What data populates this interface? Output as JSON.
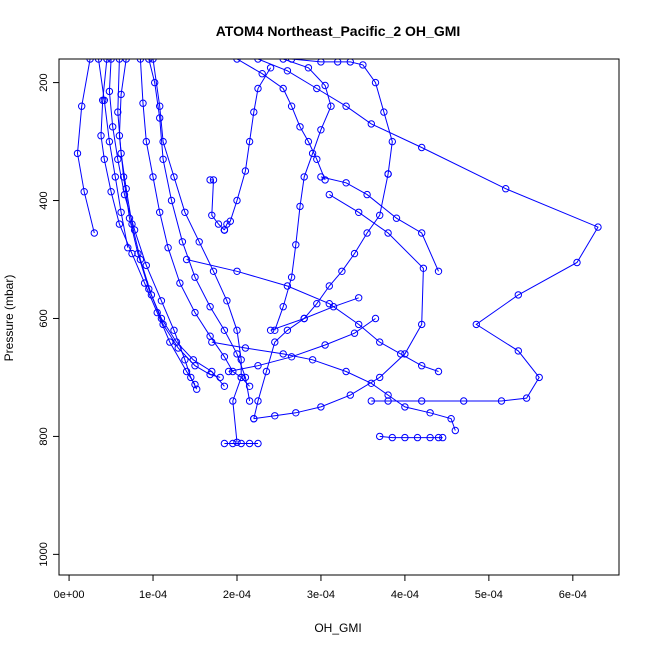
{
  "chart_data": {
    "type": "line",
    "title": "ATOM4 Northeast_Pacific_2 OH_GMI",
    "xlabel": "OH_GMI",
    "ylabel": "Pressure (mbar)",
    "xlim": [
      -1.2e-05,
      0.000655
    ],
    "ylim": [
      1035,
      160
    ],
    "y_reversed": true,
    "x_ticks": [
      0,
      0.0001,
      0.0002,
      0.0003,
      0.0004,
      0.0005,
      0.0006
    ],
    "x_tick_labels": [
      "0e+00",
      "1e-04",
      "2e-04",
      "3e-04",
      "4e-04",
      "5e-04",
      "6e-04"
    ],
    "y_ticks": [
      200,
      400,
      600,
      800,
      1000
    ],
    "y_tick_labels": [
      "200",
      "400",
      "600",
      "800",
      "1000"
    ],
    "grid": false,
    "color": "#0000ff",
    "series": [
      {
        "x": [
          2.5e-05,
          1.5e-05,
          1e-05,
          1.8e-05,
          3e-05
        ],
        "y": [
          160,
          240,
          320,
          385,
          455
        ]
      },
      {
        "x": [
          3.5e-05,
          4.2e-05,
          4.8e-05,
          5.5e-05,
          6.2e-05,
          7e-05
        ],
        "y": [
          160,
          230,
          300,
          360,
          420,
          480
        ]
      },
      {
        "x": [
          4.5e-05,
          4e-05,
          3.8e-05,
          4.2e-05,
          5e-05,
          6e-05,
          7.5e-05,
          9e-05,
          0.000105,
          0.00012,
          0.00014,
          0.00015
        ],
        "y": [
          160,
          230,
          290,
          330,
          385,
          440,
          490,
          540,
          590,
          640,
          690,
          712
        ]
      },
      {
        "x": [
          5e-05,
          4.8e-05,
          5.2e-05,
          5.8e-05,
          6.6e-05,
          7.8e-05,
          9.2e-05,
          0.00011,
          0.000125,
          0.000138,
          0.000145,
          0.000152
        ],
        "y": [
          160,
          215,
          275,
          330,
          390,
          450,
          510,
          570,
          620,
          670,
          700,
          720
        ]
      },
      {
        "x": [
          6e-05,
          5.8e-05,
          6.2e-05,
          6.8e-05,
          7.5e-05,
          8.5e-05,
          9.8e-05,
          0.000112,
          0.00013,
          0.00015,
          0.000168,
          0.00018
        ],
        "y": [
          160,
          250,
          320,
          380,
          440,
          500,
          560,
          610,
          650,
          680,
          695,
          700
        ]
      },
      {
        "x": [
          6.8e-05,
          6.2e-05,
          6e-05,
          6.5e-05,
          7.2e-05,
          8.2e-05,
          9.5e-05,
          0.00011,
          0.000128,
          0.000148,
          0.00017,
          0.000185
        ],
        "y": [
          160,
          220,
          290,
          360,
          430,
          490,
          550,
          600,
          640,
          670,
          690,
          715
        ]
      },
      {
        "x": [
          8.5e-05,
          8.8e-05,
          9.2e-05,
          0.0001,
          0.000108,
          0.000118,
          0.000132,
          0.00015,
          0.000168,
          0.000185,
          0.000195,
          0.000205,
          0.000215
        ],
        "y": [
          160,
          235,
          300,
          360,
          420,
          480,
          540,
          590,
          630,
          665,
          690,
          700,
          715
        ]
      },
      {
        "x": [
          9.5e-05,
          0.000102,
          0.000108,
          0.000112,
          0.000122,
          0.000135,
          0.00015,
          0.000168,
          0.000185,
          0.0002,
          0.00021,
          0.000215
        ],
        "y": [
          160,
          200,
          260,
          330,
          400,
          470,
          530,
          580,
          620,
          660,
          700,
          740
        ]
      },
      {
        "x": [
          0.0001,
          0.000108,
          0.000112,
          0.000125,
          0.000138,
          0.000155,
          0.000172,
          0.000188,
          0.0002,
          0.000205,
          0.000205,
          0.000195,
          0.0002
        ],
        "y": [
          160,
          240,
          300,
          360,
          420,
          470,
          520,
          570,
          620,
          670,
          700,
          740,
          810
        ]
      },
      {
        "x": [
          0.000168,
          0.000172,
          0.00017,
          0.000178,
          0.000185,
          0.000185
        ],
        "y": [
          365,
          365,
          425,
          440,
          450,
          450
        ]
      },
      {
        "x": [
          0.000185,
          0.000188,
          0.000192,
          0.0002,
          0.00021,
          0.000215,
          0.00022,
          0.000225,
          0.00024
        ],
        "y": [
          450,
          440,
          435,
          400,
          350,
          300,
          250,
          210,
          175
        ]
      },
      {
        "x": [
          0.0002,
          0.00023,
          0.000255,
          0.000265,
          0.000275,
          0.000285,
          0.000295,
          0.000305
        ],
        "y": [
          160,
          185,
          210,
          240,
          275,
          300,
          330,
          365
        ]
      },
      {
        "x": [
          0.000225,
          0.00026,
          0.000295,
          0.00033,
          0.00036,
          0.00042,
          0.00052,
          0.00063,
          0.000605,
          0.000535,
          0.000485,
          0.000535,
          0.00056,
          0.000545,
          0.000515,
          0.00047,
          0.00042,
          0.00038,
          0.00036
        ],
        "y": [
          160,
          180,
          210,
          240,
          270,
          310,
          380,
          445,
          505,
          560,
          610,
          655,
          700,
          735,
          740,
          740,
          740,
          740,
          740
        ]
      },
      {
        "x": [
          0.000255,
          0.000285,
          0.000305,
          0.000312,
          0.0003,
          0.00029,
          0.00028,
          0.000275,
          0.00027,
          0.000265,
          0.000255,
          0.000245
        ],
        "y": [
          160,
          175,
          205,
          240,
          280,
          320,
          360,
          410,
          475,
          530,
          580,
          620
        ]
      },
      {
        "x": [
          0.000265,
          0.0003,
          0.00032,
          0.000335,
          0.00035,
          0.000365,
          0.000375,
          0.000385,
          0.00038
        ],
        "y": [
          160,
          165,
          165,
          165,
          170,
          200,
          250,
          300,
          355
        ]
      },
      {
        "x": [
          0.00038,
          0.00037,
          0.000355,
          0.00034,
          0.000325,
          0.00031,
          0.000295,
          0.00028,
          0.00026,
          0.000245,
          0.000235,
          0.000225,
          0.00022
        ],
        "y": [
          355,
          425,
          455,
          490,
          520,
          545,
          575,
          600,
          620,
          640,
          690,
          740,
          770
        ]
      },
      {
        "x": [
          0.00022,
          0.000245,
          0.00027,
          0.0003,
          0.000335,
          0.00037,
          0.0004,
          0.00042,
          0.000422,
          0.00038,
          0.000345,
          0.00031
        ],
        "y": [
          770,
          765,
          760,
          750,
          730,
          700,
          660,
          610,
          515,
          455,
          420,
          390
        ]
      },
      {
        "x": [
          0.0003,
          0.00033,
          0.000355,
          0.00039,
          0.00042,
          0.00044
        ],
        "y": [
          360,
          370,
          390,
          430,
          455,
          520
        ]
      },
      {
        "x": [
          0.00014,
          0.0002,
          0.00026,
          0.00031,
          0.000345,
          0.00037,
          0.000395,
          0.00042,
          0.00044
        ],
        "y": [
          500,
          520,
          545,
          575,
          610,
          640,
          660,
          680,
          690
        ]
      },
      {
        "x": [
          0.00017,
          0.00021,
          0.000255,
          0.00029,
          0.00033,
          0.00036,
          0.00038,
          0.0004,
          0.00043,
          0.000455,
          0.00046
        ],
        "y": [
          640,
          650,
          660,
          670,
          690,
          710,
          730,
          750,
          760,
          770,
          790
        ]
      },
      {
        "x": [
          0.00019,
          0.000225,
          0.000265,
          0.000305,
          0.00034,
          0.000365
        ],
        "y": [
          690,
          680,
          665,
          645,
          625,
          600
        ]
      },
      {
        "x": [
          0.00024,
          0.00028,
          0.000315,
          0.000345
        ],
        "y": [
          620,
          600,
          580,
          565
        ]
      },
      {
        "x": [
          0.00037,
          0.000385,
          0.0004,
          0.000415,
          0.00043,
          0.00044,
          0.000445
        ],
        "y": [
          800,
          802,
          802,
          802,
          802,
          802,
          802
        ]
      },
      {
        "x": [
          0.000185,
          0.000195,
          0.000205,
          0.000215,
          0.000225
        ],
        "y": [
          812,
          812,
          812,
          812,
          812
        ]
      }
    ]
  }
}
